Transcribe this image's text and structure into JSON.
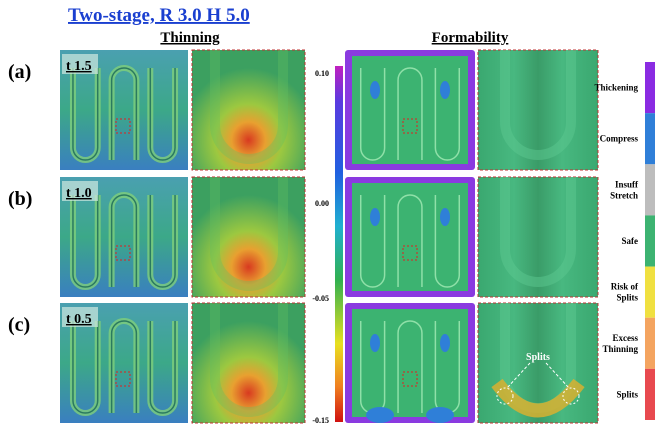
{
  "title": "Two-stage, R 3.0 H 5.0",
  "headers": {
    "thinning": "Thinning",
    "formability": "Formability"
  },
  "rows": [
    {
      "label": "(a)",
      "thickness": "t 1.5"
    },
    {
      "label": "(b)",
      "thickness": "t 1.0"
    },
    {
      "label": "(c)",
      "thickness": "t 0.5",
      "annotation": "Splits"
    }
  ],
  "colorbar": {
    "ticks": [
      "0.10",
      "0.00",
      "-0.05",
      "-0.15"
    ]
  },
  "legend": [
    {
      "lines": [
        "Thickening"
      ],
      "color": "#8a2be2"
    },
    {
      "lines": [
        "Compress"
      ],
      "color": "#2f7fd8"
    },
    {
      "lines": [
        "Insuff",
        "Stretch"
      ],
      "color": "#bdbdbd"
    },
    {
      "lines": [
        "Safe"
      ],
      "color": "#3cb371"
    },
    {
      "lines": [
        "Risk of",
        "Splits"
      ],
      "color": "#f0e040"
    },
    {
      "lines": [
        "Excess",
        "Thinning"
      ],
      "color": "#f4a460"
    },
    {
      "lines": [
        "Splits"
      ],
      "color": "#e8494f"
    }
  ]
}
